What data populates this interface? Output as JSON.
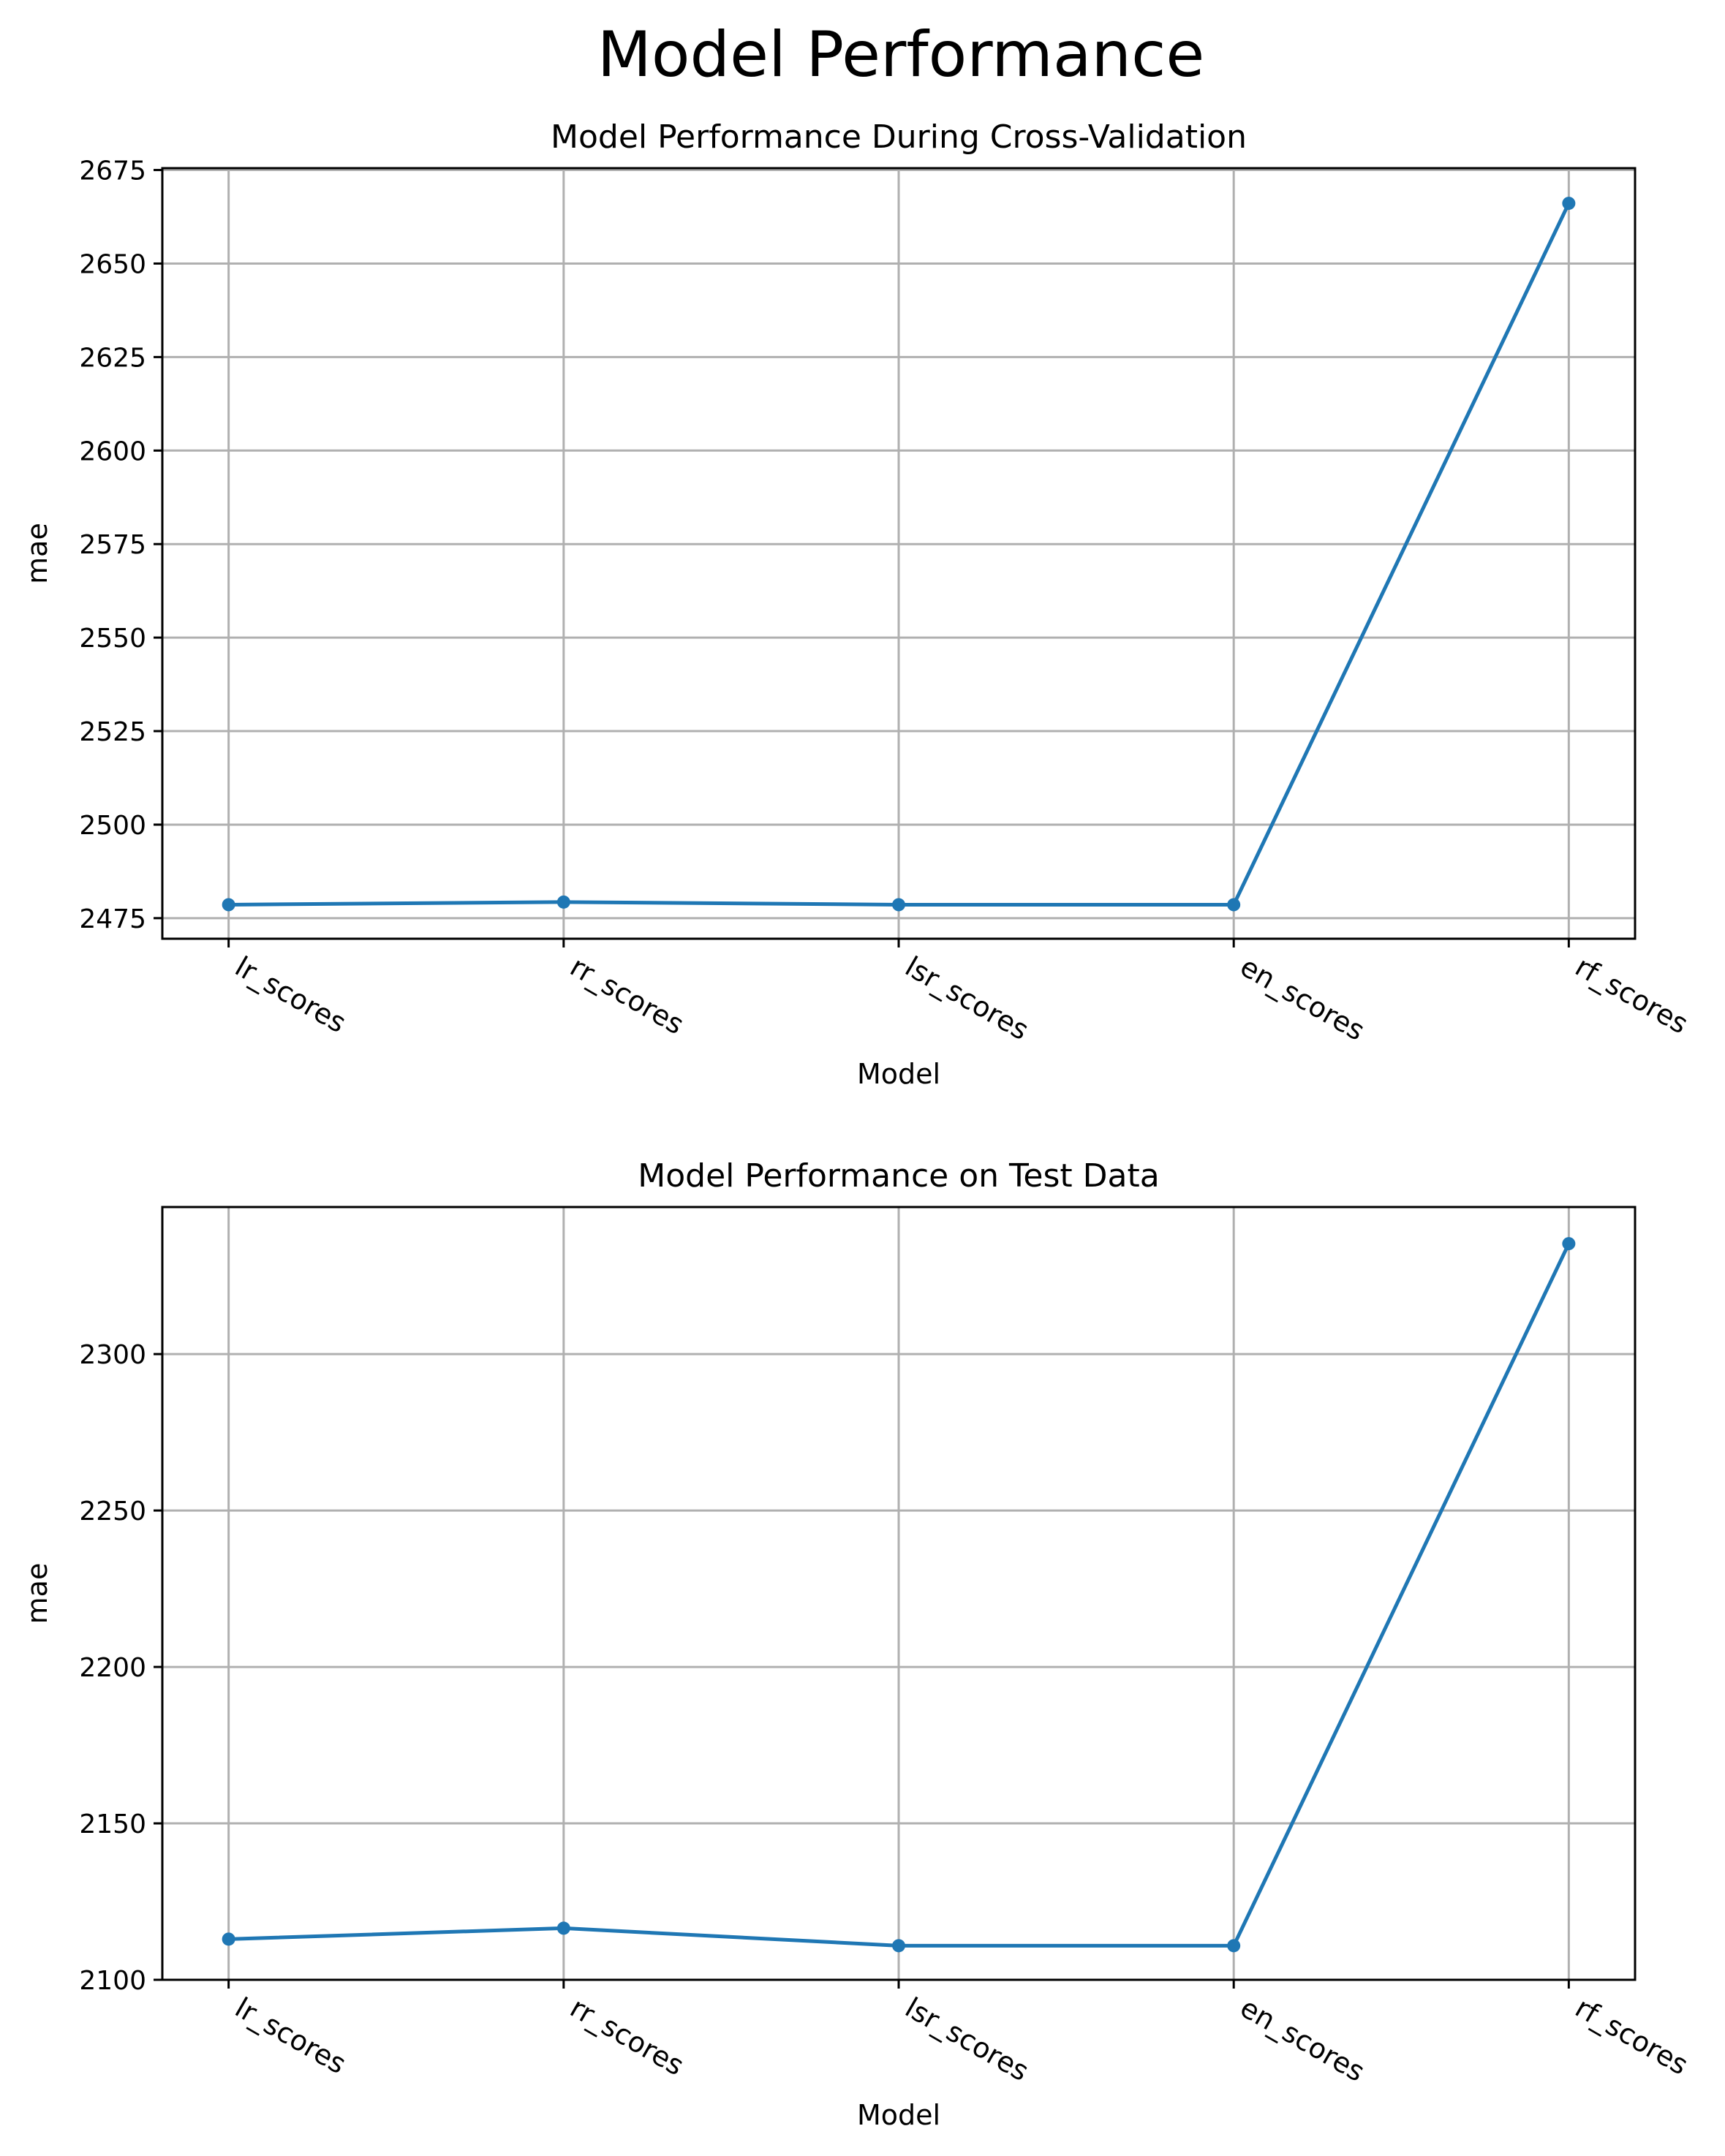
{
  "figure_title": "Model Performance",
  "colors": {
    "series": "#1f77b4",
    "grid": "#b0b0b0",
    "axis": "#000000",
    "background": "#ffffff"
  },
  "chart_data": [
    {
      "type": "line",
      "title": "Model Performance During Cross-Validation",
      "xlabel": "Model",
      "ylabel": "mae",
      "categories": [
        "lr_scores",
        "rr_scores",
        "lsr_scores",
        "en_scores",
        "rf_scores"
      ],
      "series": [
        {
          "name": "mae",
          "values": [
            2478.6,
            2479.3,
            2478.6,
            2478.6,
            2666.1
          ]
        }
      ],
      "ylim": [
        2469.5,
        2675.5
      ],
      "yticks": [
        2475,
        2500,
        2525,
        2550,
        2575,
        2600,
        2625,
        2650,
        2675
      ],
      "grid": true,
      "marker": "circle"
    },
    {
      "type": "line",
      "title": "Model Performance on Test Data",
      "xlabel": "Model",
      "ylabel": "mae",
      "categories": [
        "lr_scores",
        "rr_scores",
        "lsr_scores",
        "en_scores",
        "rf_scores"
      ],
      "series": [
        {
          "name": "mae",
          "values": [
            2113.0,
            2116.5,
            2110.9,
            2110.9,
            2335.3
          ]
        }
      ],
      "ylim": [
        2100,
        2347
      ],
      "yticks": [
        2100,
        2150,
        2200,
        2250,
        2300
      ],
      "grid": true,
      "marker": "circle"
    }
  ]
}
